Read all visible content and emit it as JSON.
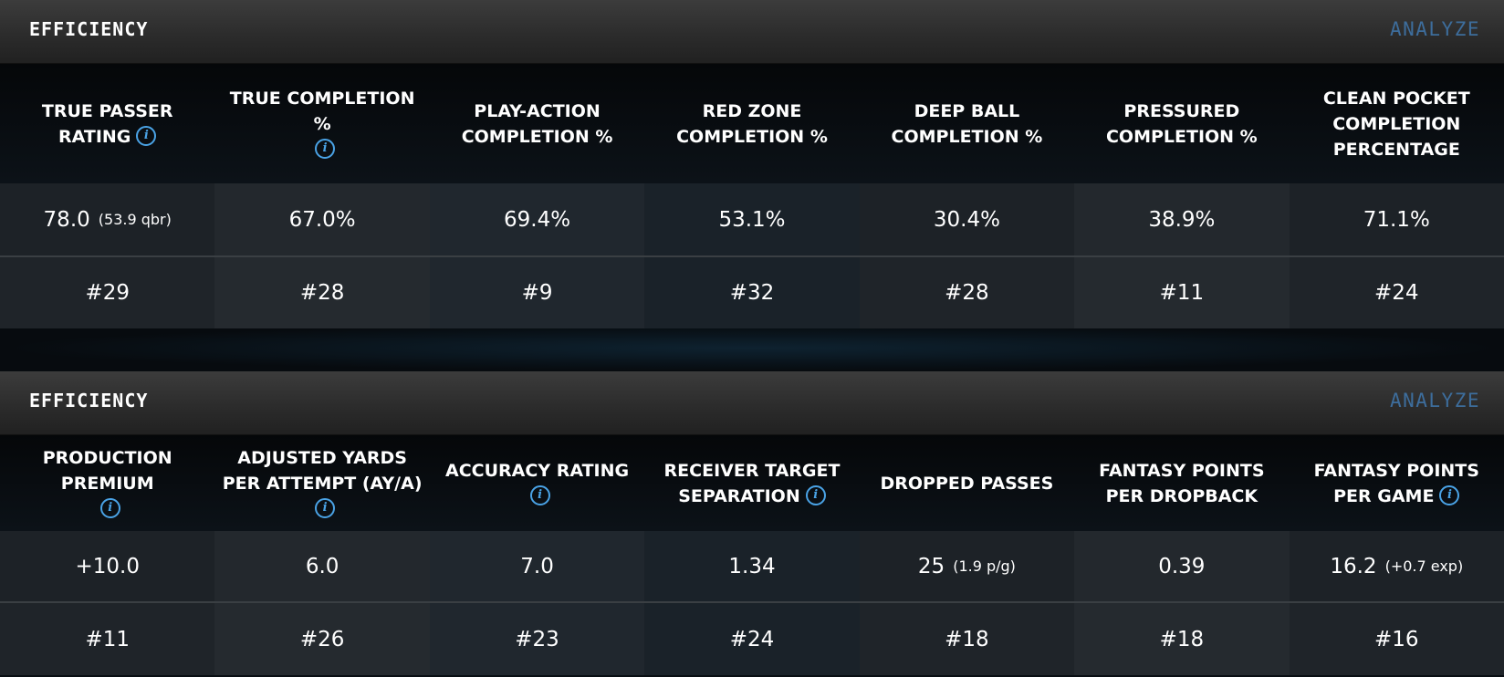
{
  "panels": [
    {
      "title": "EFFICIENCY",
      "analyze_label": "ANALYZE",
      "columns": [
        {
          "header": "TRUE PASSER RATING",
          "info": true,
          "value": "78.0",
          "sub": "(53.9 qbr)",
          "rank": "#29"
        },
        {
          "header": "TRUE COMPLETION %",
          "info": true,
          "value": "67.0%",
          "sub": "",
          "rank": "#28"
        },
        {
          "header": "PLAY-ACTION COMPLETION %",
          "info": false,
          "value": "69.4%",
          "sub": "",
          "rank": "#9"
        },
        {
          "header": "RED ZONE COMPLETION %",
          "info": false,
          "value": "53.1%",
          "sub": "",
          "rank": "#32"
        },
        {
          "header": "DEEP BALL COMPLETION %",
          "info": false,
          "value": "30.4%",
          "sub": "",
          "rank": "#28"
        },
        {
          "header": "PRESSURED COMPLETION %",
          "info": false,
          "value": "38.9%",
          "sub": "",
          "rank": "#11"
        },
        {
          "header": "CLEAN POCKET COMPLETION PERCENTAGE",
          "info": false,
          "value": "71.1%",
          "sub": "",
          "rank": "#24"
        }
      ]
    },
    {
      "title": "EFFICIENCY",
      "analyze_label": "ANALYZE",
      "columns": [
        {
          "header": "PRODUCTION PREMIUM",
          "info": true,
          "value": "+10.0",
          "sub": "",
          "rank": "#11"
        },
        {
          "header": "ADJUSTED YARDS PER ATTEMPT (AY/A)",
          "info": true,
          "value": "6.0",
          "sub": "",
          "rank": "#26"
        },
        {
          "header": "ACCURACY RATING",
          "info": true,
          "value": "7.0",
          "sub": "",
          "rank": "#23"
        },
        {
          "header": "RECEIVER TARGET SEPARATION",
          "info": true,
          "value": "1.34",
          "sub": "",
          "rank": "#24"
        },
        {
          "header": "DROPPED PASSES",
          "info": false,
          "value": "25",
          "sub": "(1.9 p/g)",
          "rank": "#18"
        },
        {
          "header": "FANTASY POINTS PER DROPBACK",
          "info": false,
          "value": "0.39",
          "sub": "",
          "rank": "#18"
        },
        {
          "header": "FANTASY POINTS PER GAME",
          "info": true,
          "value": "16.2",
          "sub": "(+0.7 exp)",
          "rank": "#16"
        }
      ]
    }
  ],
  "icons": {
    "info": "info-icon",
    "info_glyph": "i"
  },
  "colors": {
    "analyze_link": "#3d6d9c",
    "info_icon": "#4aa3e6"
  }
}
